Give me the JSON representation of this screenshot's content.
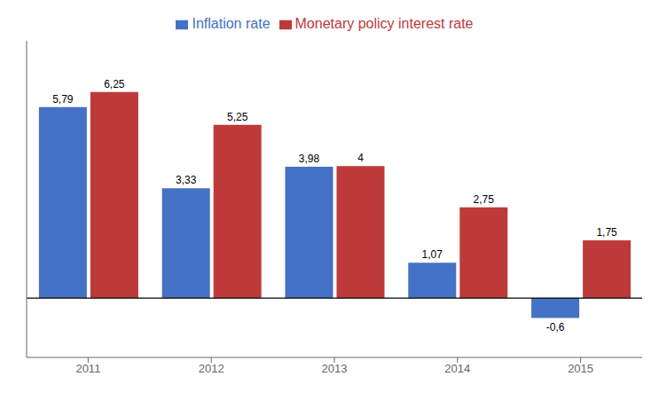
{
  "chart_data": {
    "type": "bar",
    "categories": [
      "2011",
      "2012",
      "2013",
      "2014",
      "2015"
    ],
    "series": [
      {
        "name": "Inflation rate",
        "color": "#4472C4",
        "values": [
          5.79,
          3.33,
          3.98,
          1.07,
          -0.6
        ],
        "value_labels": [
          "5,79",
          "3,33",
          "3,98",
          "1,07",
          "-0,6"
        ]
      },
      {
        "name": "Monetary policy interest rate",
        "color": "#BE3A3A",
        "values": [
          6.25,
          5.25,
          4.0,
          2.75,
          1.75
        ],
        "value_labels": [
          "6,25",
          "5,25",
          "4",
          "2,75",
          "1,75"
        ]
      }
    ],
    "ylim": [
      -1.8,
      7.8
    ],
    "data_labels": true,
    "tick_labels": "x",
    "legend": "top",
    "grid": false
  }
}
